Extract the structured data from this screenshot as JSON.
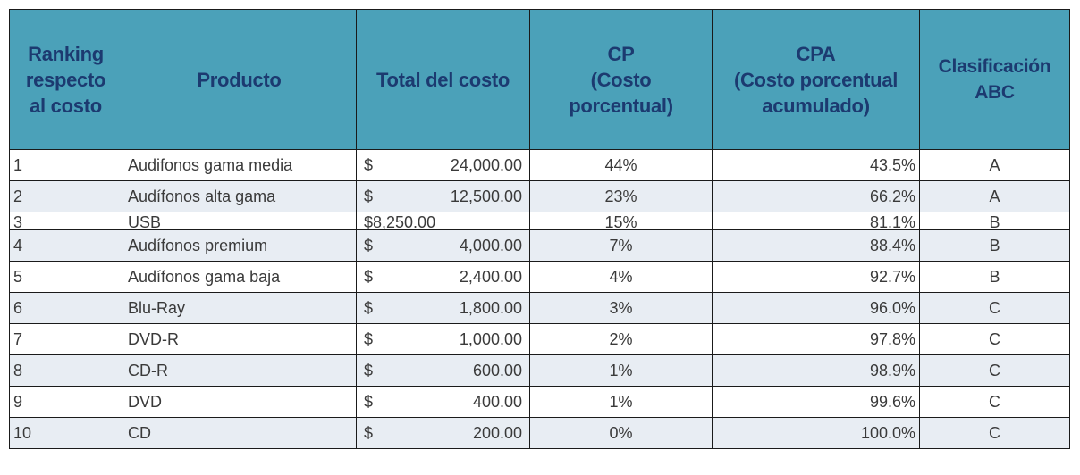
{
  "table": {
    "headers": {
      "rank": [
        "Ranking",
        "respecto",
        "al costo"
      ],
      "product": [
        "Producto"
      ],
      "total": [
        "Total del costo"
      ],
      "cp": [
        "CP",
        "(Costo",
        "porcentual)"
      ],
      "cpa": [
        "CPA",
        "(Costo porcentual",
        "acumulado)"
      ],
      "abc": [
        "Clasificación",
        "ABC"
      ]
    },
    "currency_symbol": "$",
    "rows": [
      {
        "rank": "1",
        "product": "Audifonos gama media",
        "total": "24,000.00",
        "cp": "44%",
        "cpa": "43.5%",
        "abc": "A"
      },
      {
        "rank": "2",
        "product": "Audífonos alta gama",
        "total": "12,500.00",
        "cp": "23%",
        "cpa": "66.2%",
        "abc": "A"
      },
      {
        "rank": "3",
        "product": "USB",
        "total": "8,250.00",
        "cp": "15%",
        "cpa": "81.1%",
        "abc": "B"
      },
      {
        "rank": "4",
        "product": "Audífonos premium",
        "total": "4,000.00",
        "cp": "7%",
        "cpa": "88.4%",
        "abc": "B"
      },
      {
        "rank": "5",
        "product": "Audífonos gama baja",
        "total": "2,400.00",
        "cp": "4%",
        "cpa": "92.7%",
        "abc": "B"
      },
      {
        "rank": "6",
        "product": "Blu-Ray",
        "total": "1,800.00",
        "cp": "3%",
        "cpa": "96.0%",
        "abc": "C"
      },
      {
        "rank": "7",
        "product": "DVD-R",
        "total": "1,000.00",
        "cp": "2%",
        "cpa": "97.8%",
        "abc": "C"
      },
      {
        "rank": "8",
        "product": "CD-R",
        "total": "600.00",
        "cp": "1%",
        "cpa": "98.9%",
        "abc": "C"
      },
      {
        "rank": "9",
        "product": "DVD",
        "total": "400.00",
        "cp": "1%",
        "cpa": "99.6%",
        "abc": "C"
      },
      {
        "rank": "10",
        "product": "CD",
        "total": "200.00",
        "cp": "0%",
        "cpa": "100.0%",
        "abc": "C"
      }
    ]
  },
  "colors": {
    "header_background": "#4ba1b9",
    "header_text": "#1c3a70",
    "alt_row_background": "#e8edf3",
    "body_text": "#3a3a3a",
    "border": "#1a1a1a"
  }
}
